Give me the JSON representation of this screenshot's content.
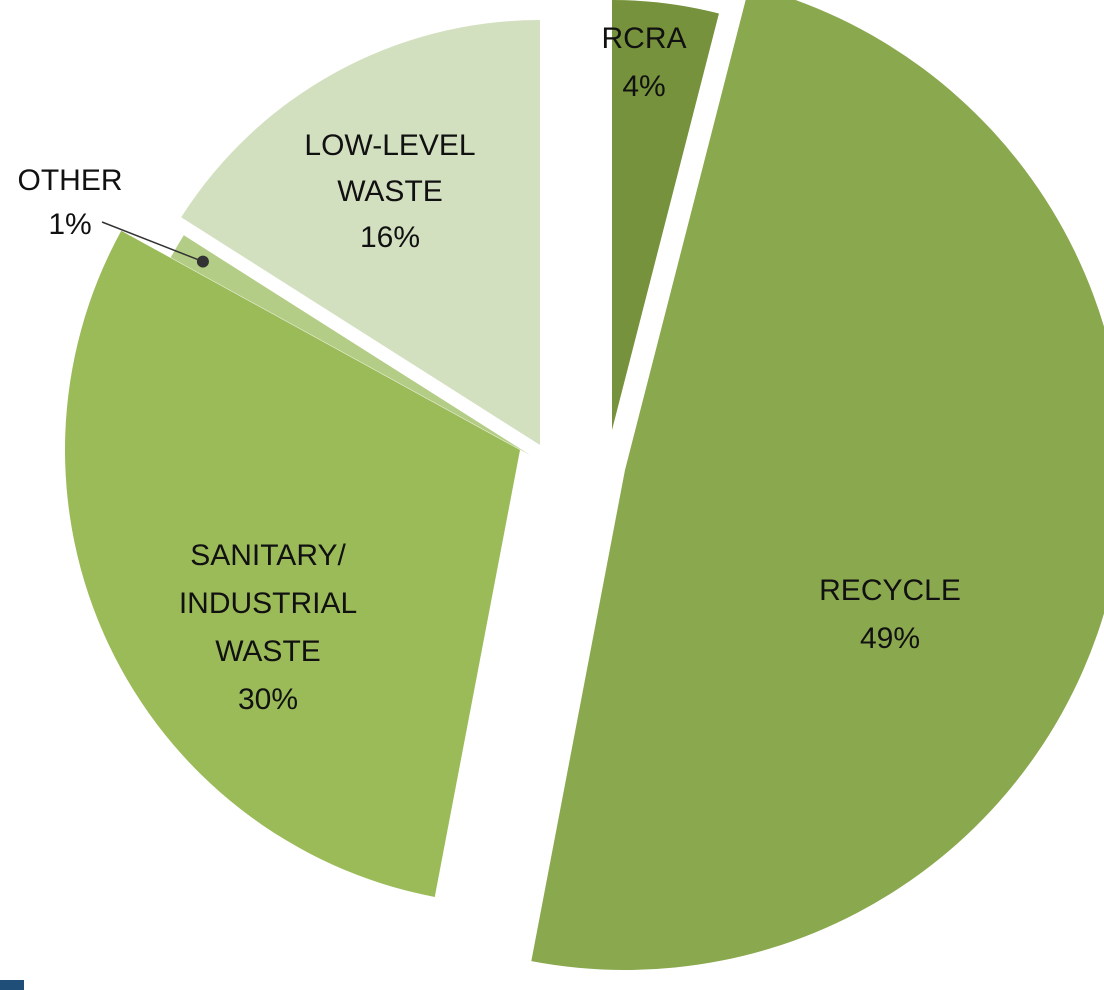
{
  "chart_data": {
    "type": "pie",
    "exploded": true,
    "slices": [
      {
        "key": "rcra",
        "label_lines": [
          "RCRA"
        ],
        "percent_label": "4%",
        "value": 4,
        "color": "#76923c"
      },
      {
        "key": "recycle",
        "label_lines": [
          "RECYCLE"
        ],
        "percent_label": "49%",
        "value": 49,
        "color": "#8aa84e"
      },
      {
        "key": "sanitary",
        "label_lines": [
          "SANITARY/",
          "INDUSTRIAL",
          "WASTE"
        ],
        "percent_label": "30%",
        "value": 30,
        "color": "#9bbb59"
      },
      {
        "key": "other",
        "label_lines": [
          "OTHER"
        ],
        "percent_label": "1%",
        "value": 1,
        "color": "#b4cd86"
      },
      {
        "key": "lowlevel",
        "label_lines": [
          "LOW-LEVEL",
          "WASTE"
        ],
        "percent_label": "16%",
        "value": 16,
        "color": "#d3e0c0"
      }
    ],
    "leader_line_color": "#333333"
  }
}
